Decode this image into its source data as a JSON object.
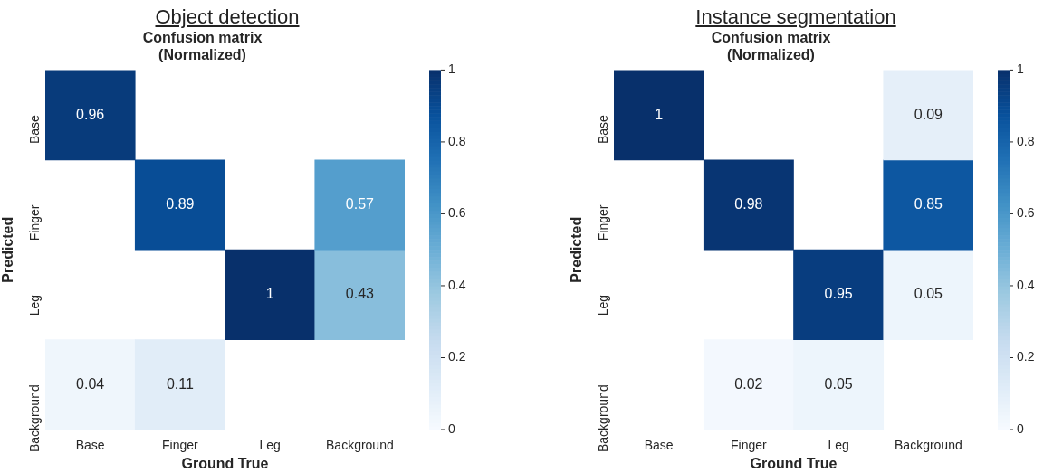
{
  "chart_data": [
    {
      "type": "heatmap",
      "title": "Object detection",
      "subtitle": "Confusion matrix\n(Normalized)",
      "xlabel": "Ground True",
      "ylabel": "Predicted",
      "categories": [
        "Base",
        "Finger",
        "Leg",
        "Background"
      ],
      "y_categories": [
        "Base",
        "Finger",
        "Leg",
        "Background"
      ],
      "cells": [
        [
          0.96,
          null,
          null,
          null
        ],
        [
          null,
          0.89,
          null,
          0.57
        ],
        [
          null,
          null,
          1,
          0.43
        ],
        [
          0.04,
          0.11,
          null,
          null
        ]
      ],
      "clim": [
        0,
        1
      ],
      "cticks": [
        0,
        0.2,
        0.4,
        0.6,
        0.8,
        1
      ],
      "data_labels": true,
      "grid": false,
      "legend": false
    },
    {
      "type": "heatmap",
      "title": "Instance segmentation",
      "subtitle": "Confusion matrix\n(Normalized)",
      "xlabel": "Ground True",
      "ylabel": "Predicted",
      "categories": [
        "Base",
        "Finger",
        "Leg",
        "Background"
      ],
      "y_categories": [
        "Base",
        "Finger",
        "Leg",
        "Background"
      ],
      "cells": [
        [
          1,
          null,
          null,
          0.09
        ],
        [
          null,
          0.98,
          null,
          0.85
        ],
        [
          null,
          null,
          0.95,
          0.05
        ],
        [
          null,
          0.02,
          0.05,
          null
        ]
      ],
      "clim": [
        0,
        1
      ],
      "cticks": [
        0,
        0.2,
        0.4,
        0.6,
        0.8,
        1
      ],
      "data_labels": true,
      "grid": false,
      "legend": false
    }
  ]
}
